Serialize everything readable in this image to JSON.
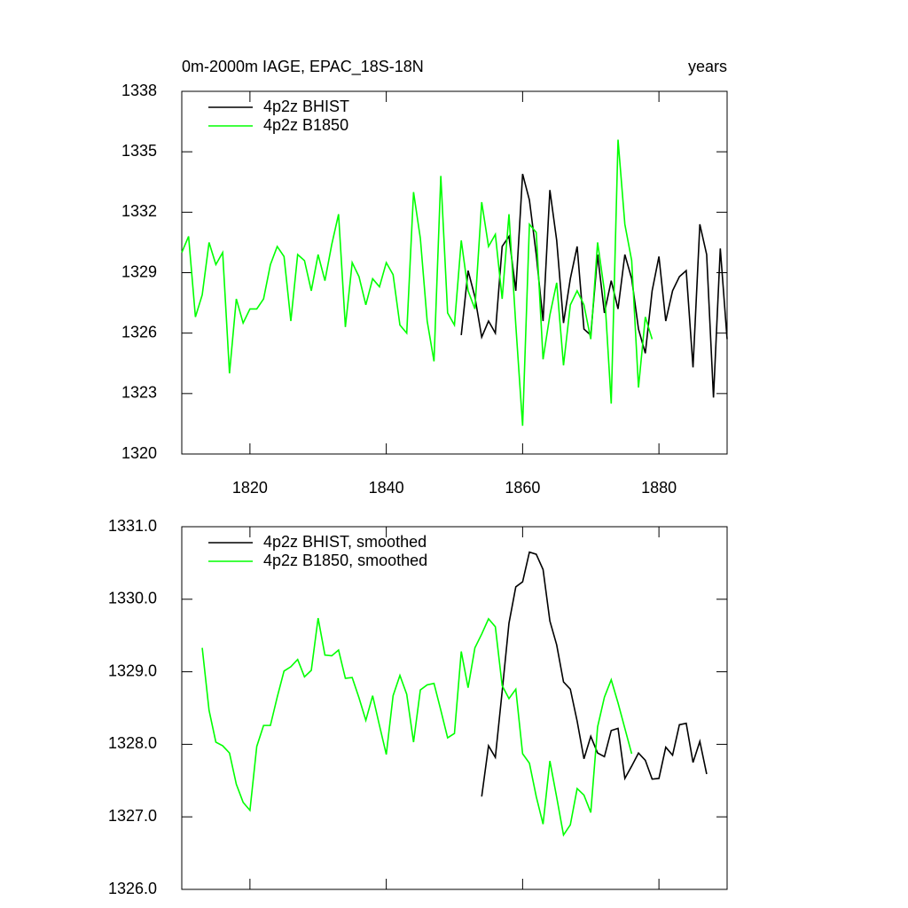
{
  "chart_data": [
    {
      "type": "line",
      "title": "0m-2000m IAGE, EPAC_18S-18N",
      "right_title": "years",
      "xlim": [
        1810,
        1890
      ],
      "xticks": [
        1820,
        1840,
        1860,
        1880
      ],
      "ylim": [
        1320,
        1338
      ],
      "yticks": [
        1320,
        1323,
        1326,
        1329,
        1332,
        1335,
        1338
      ],
      "legend": "top-left",
      "series": [
        {
          "name": "4p2z BHIST",
          "color": "#000000",
          "x": [
            1851,
            1852,
            1853,
            1854,
            1855,
            1856,
            1857,
            1858,
            1859,
            1860,
            1861,
            1862,
            1863,
            1864,
            1865,
            1866,
            1867,
            1868,
            1869,
            1870,
            1871,
            1872,
            1873,
            1874,
            1875,
            1876,
            1877,
            1878,
            1879,
            1880,
            1881,
            1882,
            1883,
            1884,
            1885,
            1886,
            1887,
            1888,
            1889,
            1890
          ],
          "values": [
            1325.9,
            1329.1,
            1327.8,
            1325.8,
            1326.6,
            1326.0,
            1330.3,
            1330.8,
            1328.1,
            1333.9,
            1332.6,
            1329.9,
            1326.6,
            1333.1,
            1330.6,
            1326.5,
            1328.7,
            1330.3,
            1326.2,
            1325.9,
            1329.9,
            1327.0,
            1328.6,
            1327.2,
            1329.9,
            1328.7,
            1326.2,
            1325.0,
            1328.1,
            1329.8,
            1326.6,
            1328.1,
            1328.8,
            1329.1,
            1324.3,
            1331.4,
            1329.9,
            1322.8,
            1330.2,
            1325.7
          ]
        },
        {
          "name": "4p2z B1850",
          "color": "#00ff00",
          "x": [
            1810,
            1811,
            1812,
            1813,
            1814,
            1815,
            1816,
            1817,
            1818,
            1819,
            1820,
            1821,
            1822,
            1823,
            1824,
            1825,
            1826,
            1827,
            1828,
            1829,
            1830,
            1831,
            1832,
            1833,
            1834,
            1835,
            1836,
            1837,
            1838,
            1839,
            1840,
            1841,
            1842,
            1843,
            1844,
            1845,
            1846,
            1847,
            1848,
            1849,
            1850,
            1851,
            1852,
            1853,
            1854,
            1855,
            1856,
            1857,
            1858,
            1859,
            1860,
            1861,
            1862,
            1863,
            1864,
            1865,
            1866,
            1867,
            1868,
            1869,
            1870,
            1871,
            1872,
            1873,
            1874,
            1875,
            1876,
            1877,
            1878,
            1879
          ],
          "values": [
            1330.0,
            1330.8,
            1326.8,
            1327.9,
            1330.5,
            1329.4,
            1330.0,
            1324.0,
            1327.7,
            1326.5,
            1327.2,
            1327.2,
            1327.7,
            1329.4,
            1330.3,
            1329.8,
            1326.6,
            1329.9,
            1329.6,
            1328.1,
            1329.9,
            1328.6,
            1330.4,
            1331.9,
            1326.3,
            1329.5,
            1328.8,
            1327.4,
            1328.7,
            1328.3,
            1329.5,
            1328.9,
            1326.4,
            1326.0,
            1333.0,
            1330.7,
            1326.6,
            1324.6,
            1333.8,
            1327.0,
            1326.4,
            1330.6,
            1328.1,
            1327.2,
            1332.5,
            1330.3,
            1330.9,
            1327.7,
            1331.9,
            1326.4,
            1321.4,
            1331.4,
            1331.0,
            1324.7,
            1326.9,
            1328.5,
            1324.4,
            1327.4,
            1328.1,
            1327.4,
            1325.7,
            1330.5,
            1328.1,
            1322.5,
            1335.6,
            1331.4,
            1329.6,
            1323.3,
            1326.8,
            1325.7
          ]
        }
      ]
    },
    {
      "type": "line",
      "xlim": [
        1810,
        1890
      ],
      "xticks": [
        1820,
        1840,
        1860,
        1880
      ],
      "ylim": [
        1326,
        1331
      ],
      "yticks": [
        {
          "value": 1326,
          "label": "1326.0"
        },
        {
          "value": 1327,
          "label": "1327.0"
        },
        {
          "value": 1328,
          "label": "1328.0"
        },
        {
          "value": 1329,
          "label": "1329.0"
        },
        {
          "value": 1330,
          "label": "1330.0"
        },
        {
          "value": 1331,
          "label": "1331.0"
        }
      ],
      "legend": "top-left",
      "series": [
        {
          "name": "4p2z BHIST, smoothed",
          "color": "#000000",
          "x": [
            1854,
            1855,
            1856,
            1857,
            1858,
            1859,
            1860,
            1861,
            1862,
            1863,
            1864,
            1865,
            1866,
            1867,
            1868,
            1869,
            1870,
            1871,
            1872,
            1873,
            1874,
            1875,
            1876,
            1877,
            1878,
            1879,
            1880,
            1881,
            1882,
            1883,
            1884,
            1885,
            1886,
            1887
          ],
          "values": [
            1327.28,
            1327.98,
            1327.82,
            1328.73,
            1329.67,
            1330.17,
            1330.24,
            1330.65,
            1330.62,
            1330.41,
            1329.7,
            1329.37,
            1328.86,
            1328.76,
            1328.32,
            1327.8,
            1328.11,
            1327.88,
            1327.83,
            1328.19,
            1328.22,
            1327.53,
            1327.7,
            1327.88,
            1327.78,
            1327.52,
            1327.53,
            1327.96,
            1327.85,
            1328.27,
            1328.29,
            1327.75,
            1328.04,
            1327.59
          ]
        },
        {
          "name": "4p2z B1850, smoothed",
          "color": "#00ff00",
          "x": [
            1813,
            1814,
            1815,
            1816,
            1817,
            1818,
            1819,
            1820,
            1821,
            1822,
            1823,
            1824,
            1825,
            1826,
            1827,
            1828,
            1829,
            1830,
            1831,
            1832,
            1833,
            1834,
            1835,
            1836,
            1837,
            1838,
            1839,
            1840,
            1841,
            1842,
            1843,
            1844,
            1845,
            1846,
            1847,
            1848,
            1849,
            1850,
            1851,
            1852,
            1853,
            1854,
            1855,
            1856,
            1857,
            1858,
            1859,
            1860,
            1861,
            1862,
            1863,
            1864,
            1865,
            1866,
            1867,
            1868,
            1869,
            1870,
            1871,
            1872,
            1873,
            1874,
            1875,
            1876
          ],
          "values": [
            1329.33,
            1328.47,
            1328.03,
            1327.98,
            1327.88,
            1327.45,
            1327.2,
            1327.09,
            1327.97,
            1328.26,
            1328.26,
            1328.65,
            1329.01,
            1329.07,
            1329.17,
            1328.93,
            1329.02,
            1329.74,
            1329.23,
            1329.22,
            1329.3,
            1328.91,
            1328.92,
            1328.64,
            1328.33,
            1328.67,
            1328.26,
            1327.86,
            1328.67,
            1328.95,
            1328.69,
            1328.03,
            1328.75,
            1328.82,
            1328.84,
            1328.47,
            1328.09,
            1328.15,
            1329.28,
            1328.78,
            1329.33,
            1329.52,
            1329.73,
            1329.62,
            1328.81,
            1328.63,
            1328.76,
            1327.87,
            1327.74,
            1327.28,
            1326.9,
            1327.77,
            1327.27,
            1326.75,
            1326.89,
            1327.39,
            1327.3,
            1327.06,
            1328.24,
            1328.65,
            1328.89,
            1328.57,
            1328.22,
            1327.87
          ]
        }
      ]
    }
  ]
}
